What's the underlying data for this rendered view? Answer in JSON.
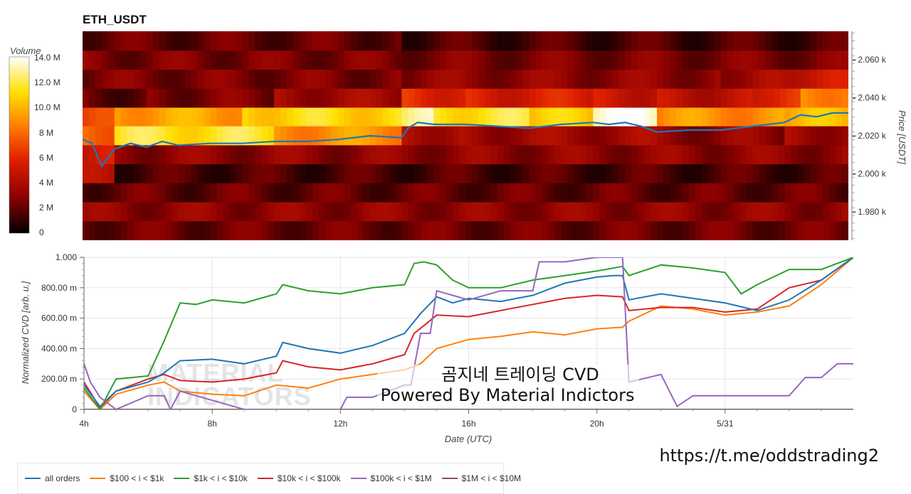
{
  "title": "ETH_USDT",
  "colorbar": {
    "label": "Volume",
    "ticks": [
      "14.0 M",
      "12.0 M",
      "10.0 M",
      "8 M",
      "6 M",
      "4 M",
      "2 M",
      "0"
    ]
  },
  "colors": {
    "all_orders": "#1f77b4",
    "s100_1k": "#ff7f0e",
    "s1k_10k": "#2ca02c",
    "s10k_100k": "#d62728",
    "s100k_1m": "#9467bd",
    "s1m_10m": "#8c564b"
  },
  "top_axis": {
    "ylabel": "Price [USDT]"
  },
  "bottom_axis": {
    "ylabel": "Normalized CVD [arb. u.]",
    "xlabel": "Date (UTC)"
  },
  "watermark": [
    "MATERIAL",
    "INDICATORS"
  ],
  "caption": [
    "곰지네 트레이딩 CVD",
    "Powered By Material Indictors"
  ],
  "link": "https://t.me/oddstrading2",
  "chart_data": [
    {
      "type": "heatmap",
      "title": "ETH_USDT",
      "xlabel": "",
      "ylabel": "Price [USDT]",
      "value_label": "Volume",
      "value_range": [
        0,
        14000000
      ],
      "value_ticks": [
        "0",
        "2 M",
        "4 M",
        "6 M",
        "8 M",
        "10.0 M",
        "12.0 M",
        "14.0 M"
      ],
      "ylim": [
        1965,
        2075
      ],
      "y_ticks": [
        "1.980 k",
        "2.000 k",
        "2.020 k",
        "2.040 k",
        "2.060 k"
      ],
      "y_tick_values": [
        1980,
        2000,
        2020,
        2040,
        2060
      ],
      "price_bins": [
        1970,
        1980,
        1990,
        2000,
        2010,
        2020,
        2030,
        2040,
        2050,
        2060,
        2070
      ],
      "time_range_hours": [
        4,
        28
      ],
      "band_volume": [
        {
          "price": 2030,
          "segments": [
            [
              4,
              5,
              6.5
            ],
            [
              5,
              9,
              9.5
            ],
            [
              9,
              14,
              11
            ],
            [
              14,
              15,
              12.5
            ],
            [
              15,
              18,
              11.5
            ],
            [
              18,
              20,
              10.5
            ],
            [
              20,
              22,
              13.5
            ],
            [
              22,
              26,
              9
            ],
            [
              26,
              28,
              10
            ]
          ]
        },
        {
          "price": 2020,
          "segments": [
            [
              4,
              5,
              8
            ],
            [
              5,
              10,
              11.5
            ],
            [
              10,
              14,
              9
            ],
            [
              14,
              16,
              4
            ],
            [
              16,
              22,
              3.5
            ],
            [
              22,
              26,
              3
            ],
            [
              26,
              28,
              3.5
            ]
          ]
        },
        {
          "price": 2010,
          "segments": [
            [
              4,
              5,
              5
            ],
            [
              5,
              28,
              3
            ]
          ]
        },
        {
          "price": 2040,
          "segments": [
            [
              4,
              6,
              2
            ],
            [
              6,
              10,
              2.5
            ],
            [
              10,
              14,
              3.5
            ],
            [
              14,
              16,
              6
            ],
            [
              16,
              20,
              5.5
            ],
            [
              20,
              22,
              5
            ],
            [
              22,
              25,
              4.5
            ],
            [
              25,
              26.5,
              6
            ],
            [
              26.5,
              28,
              9
            ]
          ]
        },
        {
          "price": 2050,
          "segments": [
            [
              4,
              14,
              2.5
            ],
            [
              14,
              24,
              3
            ],
            [
              24,
              26,
              3.5
            ],
            [
              26,
              28,
              5
            ]
          ]
        },
        {
          "price": 2060,
          "segments": [
            [
              4,
              28,
              2.5
            ]
          ]
        },
        {
          "price": 2070,
          "segments": [
            [
              4,
              14,
              2
            ],
            [
              14,
              28,
              1.5
            ]
          ]
        },
        {
          "price": 2000,
          "segments": [
            [
              4,
              5,
              4
            ],
            [
              5,
              28,
              1.5
            ]
          ]
        },
        {
          "price": 1990,
          "segments": [
            [
              4,
              28,
              2
            ]
          ]
        },
        {
          "price": 1980,
          "segments": [
            [
              4,
              28,
              3
            ]
          ]
        },
        {
          "price": 1970,
          "segments": [
            [
              4,
              28,
              2.2
            ]
          ]
        }
      ],
      "series": [
        {
          "name": "price",
          "x": [
            4,
            4.3,
            4.6,
            5,
            5.5,
            6,
            6.5,
            7,
            8,
            9,
            10,
            11,
            12,
            13,
            14,
            14.2,
            14.5,
            15,
            16,
            17,
            18,
            19,
            20,
            20.5,
            21,
            21.5,
            22,
            23,
            24,
            25,
            26,
            26.5,
            27,
            27.5,
            28
          ],
          "y": [
            2018,
            2016,
            2004,
            2013,
            2016,
            2014,
            2017,
            2015,
            2016,
            2016,
            2017,
            2017,
            2018,
            2020,
            2019,
            2024,
            2027,
            2026,
            2026,
            2025,
            2024,
            2026,
            2027,
            2026,
            2027,
            2025,
            2022,
            2023,
            2023,
            2025,
            2027,
            2031,
            2030,
            2032,
            2032
          ]
        }
      ]
    },
    {
      "type": "line",
      "xlabel": "Date (UTC)",
      "ylabel": "Normalized CVD [arb. u.]",
      "x_ticks": [
        "4h",
        "8h",
        "12h",
        "16h",
        "20h",
        "5/31"
      ],
      "x_tick_values": [
        4,
        8,
        12,
        16,
        20,
        24
      ],
      "xlim": [
        4,
        28
      ],
      "y_ticks": [
        "0",
        "200.00 m",
        "400.00 m",
        "600.00 m",
        "800.00 m",
        "1.000"
      ],
      "y_tick_values": [
        0,
        0.2,
        0.4,
        0.6,
        0.8,
        1.0
      ],
      "ylim": [
        0,
        1.0
      ],
      "legend_position": "bottom",
      "series": [
        {
          "name": "all orders",
          "x": [
            4,
            4.5,
            5,
            6,
            6.5,
            7,
            8,
            9,
            10,
            10.2,
            11,
            12,
            13,
            14,
            14.5,
            15,
            15.5,
            16,
            17,
            18,
            19,
            20,
            20.5,
            20.8,
            21,
            22,
            23,
            24,
            25,
            26,
            27,
            28
          ],
          "y": [
            0.16,
            0.02,
            0.12,
            0.18,
            0.24,
            0.32,
            0.33,
            0.3,
            0.35,
            0.44,
            0.4,
            0.37,
            0.42,
            0.5,
            0.63,
            0.74,
            0.7,
            0.73,
            0.71,
            0.75,
            0.83,
            0.87,
            0.88,
            0.88,
            0.72,
            0.76,
            0.73,
            0.7,
            0.65,
            0.72,
            0.85,
            1.0
          ]
        },
        {
          "name": "$100 < i < $1k",
          "x": [
            4,
            4.5,
            5,
            6,
            6.5,
            7,
            8,
            9,
            10,
            11,
            12,
            13,
            14,
            14.5,
            15,
            16,
            17,
            18,
            19,
            20,
            20.8,
            21,
            22,
            23,
            24,
            25,
            26,
            27,
            28
          ],
          "y": [
            0.12,
            0.0,
            0.1,
            0.16,
            0.18,
            0.12,
            0.1,
            0.09,
            0.16,
            0.14,
            0.2,
            0.23,
            0.26,
            0.3,
            0.4,
            0.46,
            0.48,
            0.51,
            0.49,
            0.53,
            0.54,
            0.58,
            0.68,
            0.66,
            0.62,
            0.64,
            0.68,
            0.82,
            1.0
          ]
        },
        {
          "name": "$1k < i < $10k",
          "x": [
            4,
            4.5,
            5,
            5.5,
            6,
            6.5,
            7,
            7.5,
            8,
            9,
            10,
            10.2,
            11,
            12,
            13,
            14,
            14.3,
            14.6,
            15,
            15.5,
            16,
            17,
            18,
            19,
            20,
            20.8,
            21,
            22,
            23,
            24,
            24.5,
            25,
            26,
            27,
            28
          ],
          "y": [
            0.14,
            0.0,
            0.2,
            0.21,
            0.22,
            0.45,
            0.7,
            0.69,
            0.72,
            0.7,
            0.76,
            0.82,
            0.78,
            0.76,
            0.8,
            0.82,
            0.96,
            0.97,
            0.95,
            0.85,
            0.8,
            0.8,
            0.85,
            0.88,
            0.91,
            0.94,
            0.88,
            0.95,
            0.93,
            0.9,
            0.76,
            0.82,
            0.92,
            0.92,
            1.0
          ]
        },
        {
          "name": "$10k < i < $100k",
          "x": [
            4,
            4.5,
            5,
            6,
            6.5,
            7,
            8,
            9,
            10,
            10.2,
            11,
            12,
            13,
            14,
            14.3,
            14.6,
            15,
            16,
            17,
            18,
            19,
            20,
            20.8,
            21,
            22,
            23,
            24,
            25,
            26,
            27,
            28
          ],
          "y": [
            0.18,
            0.01,
            0.12,
            0.2,
            0.23,
            0.19,
            0.18,
            0.2,
            0.24,
            0.32,
            0.28,
            0.26,
            0.3,
            0.36,
            0.5,
            0.55,
            0.62,
            0.61,
            0.65,
            0.69,
            0.73,
            0.75,
            0.74,
            0.65,
            0.67,
            0.67,
            0.64,
            0.66,
            0.8,
            0.85,
            1.0
          ]
        },
        {
          "name": "$100k < i < $1M",
          "x": [
            4,
            4.2,
            4.5,
            5,
            6,
            6.5,
            6.7,
            7,
            8,
            9,
            10,
            11,
            12,
            12.2,
            13,
            14,
            14.2,
            14.5,
            14.8,
            15,
            16,
            17,
            18,
            18.2,
            19,
            20,
            20.5,
            20.8,
            21,
            22,
            22.5,
            23,
            24,
            25,
            26,
            26.5,
            27,
            27.5,
            28
          ],
          "y": [
            0.3,
            0.18,
            0.08,
            0.0,
            0.09,
            0.09,
            0.0,
            0.12,
            0.06,
            0.0,
            0.0,
            0.0,
            0.0,
            0.08,
            0.08,
            0.16,
            0.16,
            0.5,
            0.5,
            0.78,
            0.72,
            0.78,
            0.78,
            0.97,
            0.97,
            1.0,
            1.0,
            1.0,
            0.18,
            0.23,
            0.02,
            0.09,
            0.09,
            0.09,
            0.09,
            0.21,
            0.21,
            0.3,
            0.3
          ]
        },
        {
          "name": "$1M < i < $10M",
          "x": [
            4,
            28
          ],
          "y": [
            0,
            0
          ]
        }
      ]
    }
  ]
}
